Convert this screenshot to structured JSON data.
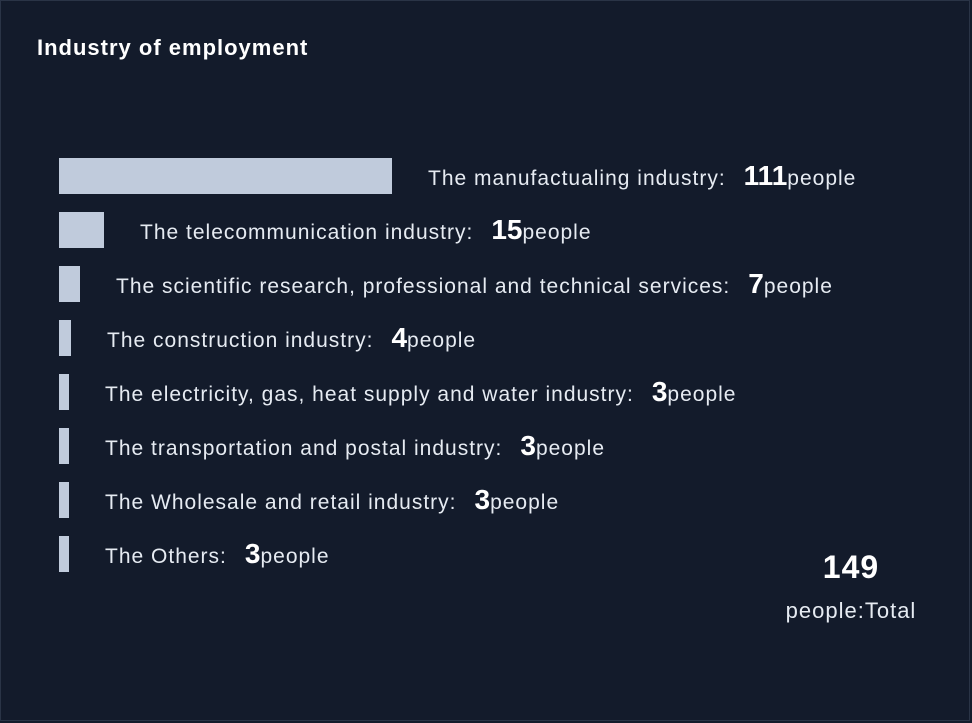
{
  "title": "Industry of employment",
  "unit": "people",
  "chart_data": {
    "type": "bar",
    "orientation": "horizontal",
    "title": "Industry of employment",
    "categories": [
      "The manufactualing industry:",
      "The telecommunication industry:",
      "The scientific research, professional and technical services:",
      "The construction industry:",
      "The electricity, gas, heat supply and water industry:",
      "The transportation and postal industry:",
      "The Wholesale and retail industry:",
      "The Others:"
    ],
    "values": [
      111,
      15,
      7,
      4,
      3,
      3,
      3,
      3
    ],
    "xlim": [
      0,
      111
    ],
    "grid": false,
    "bar_color": "#c0cbdc"
  },
  "total": {
    "value": "149",
    "label": "people:Total"
  }
}
